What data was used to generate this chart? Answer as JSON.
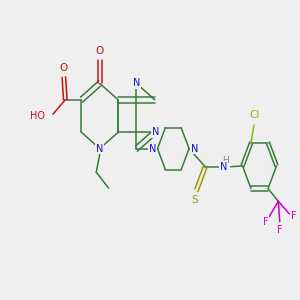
{
  "background_color": "#efefef",
  "fig_size": [
    3.0,
    3.0
  ],
  "dpi": 100,
  "bond_color": "#3a7a3a",
  "colors": {
    "N": "#1010cc",
    "O": "#cc1010",
    "S": "#999900",
    "F": "#cc00cc",
    "Cl": "#88bb00",
    "H": "#888888"
  },
  "lw": 1.1,
  "fontsize": 7.0
}
